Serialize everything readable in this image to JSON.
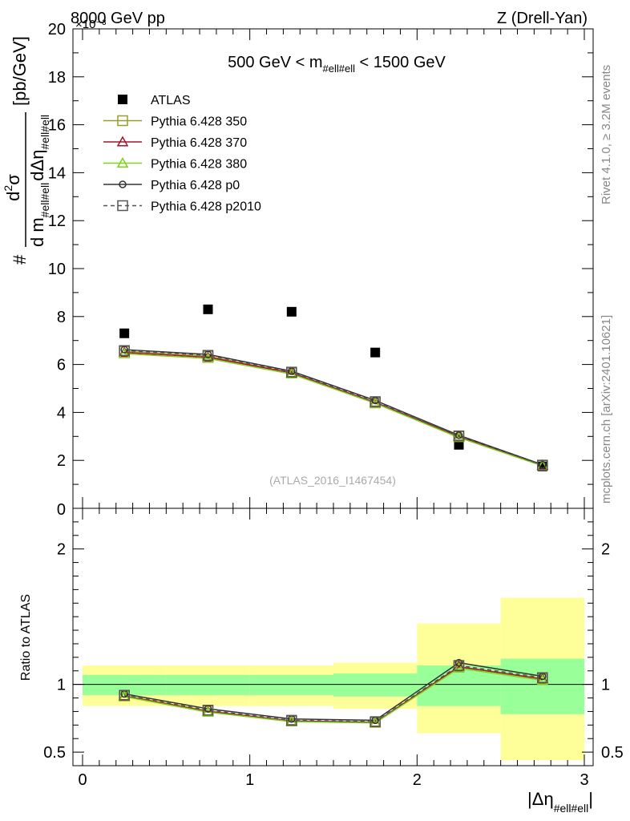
{
  "header": {
    "left": "8000 GeV pp",
    "right": "Z (Drell-Yan)",
    "exponent": "×10⁻³"
  },
  "side_labels": {
    "rivet": "Rivet 4.1.0, ≥ 3.2M events",
    "mcplots": "mcplots.cern.ch [arXiv:2401.10621]"
  },
  "chart_data": [
    {
      "type": "scatter",
      "panel": "main",
      "title": "500 GeV < m_#ell#ell < 1500 GeV",
      "title_parts": {
        "pre": "500 GeV < m",
        "sub": "#ell#ell",
        "post": " < 1500 GeV"
      },
      "watermark": "(ATLAS_2016_I1467454)",
      "ylabel_parts": {
        "hash": "#",
        "num_d": "d",
        "num_exp": "2",
        "num_sigma": "σ",
        "den_d": "d m",
        "den_sub1": "#ell#ell",
        "den_deta": "dΔη",
        "den_sub2": "#ell#ell",
        "unit": "[pb/GeV]"
      },
      "xlim": [
        0,
        3
      ],
      "ylim": [
        0,
        20
      ],
      "yscale_note": "×10⁻³",
      "y_ticks": [
        "2",
        "4",
        "6",
        "8",
        "10",
        "12",
        "14",
        "16",
        "18",
        "20"
      ],
      "y_tick_zero": "0",
      "x": [
        0.25,
        0.75,
        1.25,
        1.75,
        2.25,
        2.75
      ],
      "series": [
        {
          "name": "ATLAS",
          "values": [
            7.3,
            8.3,
            8.2,
            6.5,
            2.65,
            1.75
          ],
          "color": "#000000",
          "marker": "square-filled"
        },
        {
          "name": "Pythia 6.428 350",
          "values": [
            6.55,
            6.35,
            5.65,
            4.4,
            3.0,
            1.8
          ],
          "color": "#9b9b2a",
          "marker": "square-open"
        },
        {
          "name": "Pythia 6.428 370",
          "values": [
            6.5,
            6.3,
            5.65,
            4.42,
            3.0,
            1.8
          ],
          "color": "#a3152a",
          "marker": "triangle-open"
        },
        {
          "name": "Pythia 6.428 380",
          "values": [
            6.45,
            6.25,
            5.6,
            4.38,
            2.95,
            1.77
          ],
          "color": "#7fd11b",
          "marker": "triangle-open"
        },
        {
          "name": "Pythia 6.428 p0",
          "values": [
            6.62,
            6.42,
            5.72,
            4.5,
            3.05,
            1.82
          ],
          "color": "#333333",
          "marker": "circle-open"
        },
        {
          "name": "Pythia 6.428 p2010",
          "values": [
            6.58,
            6.38,
            5.68,
            4.45,
            3.02,
            1.8
          ],
          "color": "#555555",
          "marker": "square-open-dashed"
        }
      ]
    },
    {
      "type": "line",
      "panel": "ratio",
      "ylabel": "Ratio to ATLAS",
      "xlabel_parts": {
        "pre": "|Δη",
        "sub": "#ell#ell",
        "post": "|"
      },
      "xlim": [
        0,
        3
      ],
      "ylim": [
        0.4,
        2.3
      ],
      "x_ticks": [
        "0",
        "1",
        "2",
        "3"
      ],
      "y_ticks": [
        "0.5",
        "1",
        "2"
      ],
      "bins": [
        [
          0,
          0.5
        ],
        [
          0.5,
          1.0
        ],
        [
          1.0,
          1.5
        ],
        [
          1.5,
          2.0
        ],
        [
          2.0,
          2.5
        ],
        [
          2.5,
          3.0
        ]
      ],
      "band_inner": [
        [
          0.92,
          1.07
        ],
        [
          0.92,
          1.07
        ],
        [
          0.92,
          1.07
        ],
        [
          0.91,
          1.08
        ],
        [
          0.84,
          1.14
        ],
        [
          0.78,
          1.19
        ]
      ],
      "band_outer": [
        [
          0.84,
          1.14
        ],
        [
          0.84,
          1.14
        ],
        [
          0.84,
          1.14
        ],
        [
          0.82,
          1.16
        ],
        [
          0.64,
          1.45
        ],
        [
          0.44,
          1.64
        ]
      ],
      "x": [
        0.25,
        0.75,
        1.25,
        1.75,
        2.25,
        2.75
      ],
      "series": [
        {
          "name": "Pythia 6.428 350",
          "values": [
            0.915,
            0.805,
            0.73,
            0.72,
            1.13,
            1.04
          ],
          "color": "#9b9b2a"
        },
        {
          "name": "Pythia 6.428 370",
          "values": [
            0.915,
            0.8,
            0.73,
            0.72,
            1.13,
            1.04
          ],
          "color": "#a3152a"
        },
        {
          "name": "Pythia 6.428 380",
          "values": [
            0.91,
            0.795,
            0.725,
            0.715,
            1.12,
            1.03
          ],
          "color": "#7fd11b"
        },
        {
          "name": "Pythia 6.428 p0",
          "values": [
            0.93,
            0.82,
            0.745,
            0.735,
            1.16,
            1.06
          ],
          "color": "#333333"
        },
        {
          "name": "Pythia 6.428 p2010",
          "values": [
            0.92,
            0.81,
            0.735,
            0.725,
            1.14,
            1.05
          ],
          "color": "#555555"
        }
      ]
    }
  ],
  "colors": {
    "band_inner": "#99ff99",
    "band_outer": "#ffff99"
  }
}
